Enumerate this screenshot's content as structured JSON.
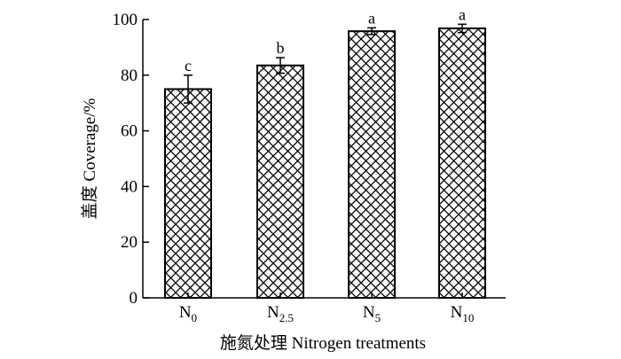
{
  "chart_data": {
    "type": "bar",
    "categories": [
      {
        "main": "N",
        "sub": "0"
      },
      {
        "main": "N",
        "sub": "2.5"
      },
      {
        "main": "N",
        "sub": "5"
      },
      {
        "main": "N",
        "sub": "10"
      }
    ],
    "values": [
      75,
      83.5,
      95.8,
      96.8
    ],
    "errors": [
      5,
      2.8,
      1.2,
      1.5
    ],
    "significance_letters": [
      "c",
      "b",
      "a",
      "a"
    ],
    "xlabel": "施氮处理 Nitrogen treatments",
    "ylabel": "盖度 Coverage/%",
    "ylim": [
      0,
      100
    ],
    "yticks": [
      0,
      20,
      40,
      60,
      80,
      100
    ],
    "grid": false,
    "bar_fill": "crosshatch",
    "colors": {
      "bar_edge": "#000000",
      "hatch": "#000000",
      "background": "#ffffff"
    }
  }
}
